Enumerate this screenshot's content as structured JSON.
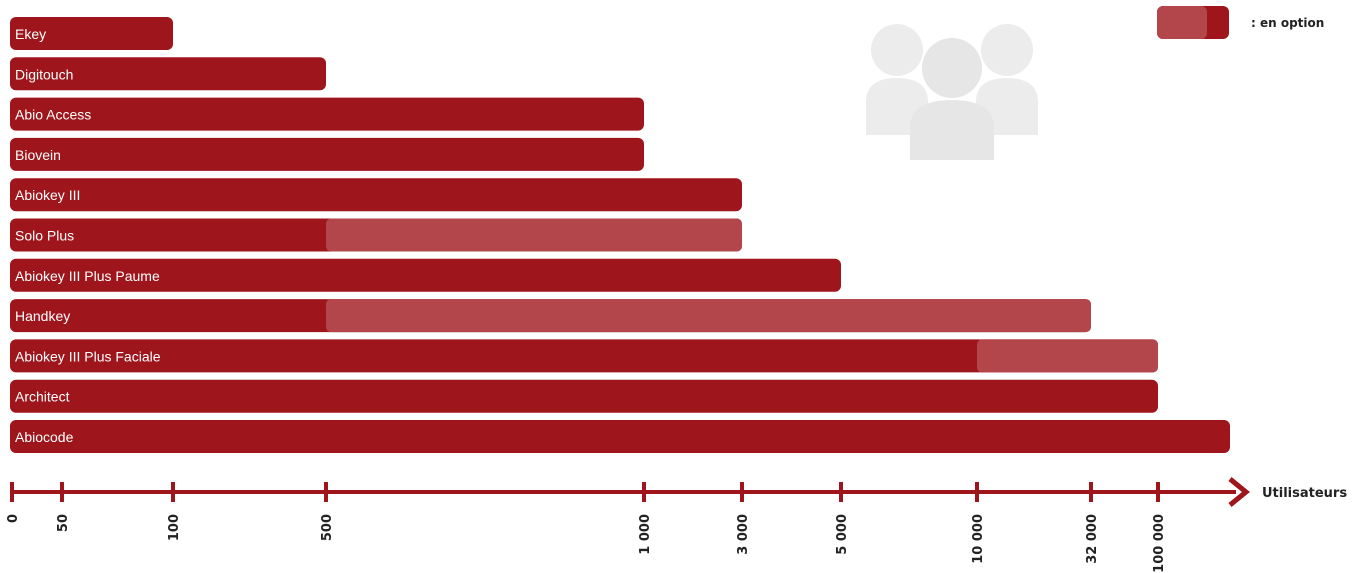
{
  "chart_data": {
    "type": "bar",
    "orientation": "horizontal",
    "scale": "ordinal",
    "colors": {
      "bar": "#9e161c",
      "option": "#b3464b",
      "axis": "#9e161c",
      "watermark": "#ececec"
    },
    "legend": {
      "label": ": en option",
      "placement": "top-right"
    },
    "x_axis": {
      "title": "Utilisateurs",
      "ticks": [
        "0",
        "50",
        "100",
        "500",
        "1 000",
        "3 000",
        "5 000",
        "10 000",
        "32 000",
        "100 000"
      ],
      "tick_values": [
        0,
        50,
        100,
        500,
        1000,
        3000,
        5000,
        10000,
        32000,
        100000
      ]
    },
    "watermark_icon": "users-group-icon",
    "bars": [
      {
        "label": "Ekey",
        "value": 100
      },
      {
        "label": "Digitouch",
        "value": 500
      },
      {
        "label": "Abio Access",
        "value": 1000
      },
      {
        "label": "Biovein",
        "value": 1000
      },
      {
        "label": "Abiokey III",
        "value": 3000
      },
      {
        "label": "Solo Plus",
        "value": 500,
        "option_value": 3000
      },
      {
        "label": "Abiokey III Plus Paume",
        "value": 5000
      },
      {
        "label": "Handkey",
        "value": 500,
        "option_value": 32000
      },
      {
        "label": "Abiokey III Plus Faciale",
        "value": 10000,
        "option_value": 100000
      },
      {
        "label": "Architect",
        "value": 100000
      },
      {
        "label": "Abiocode",
        "value": 150000
      }
    ]
  }
}
